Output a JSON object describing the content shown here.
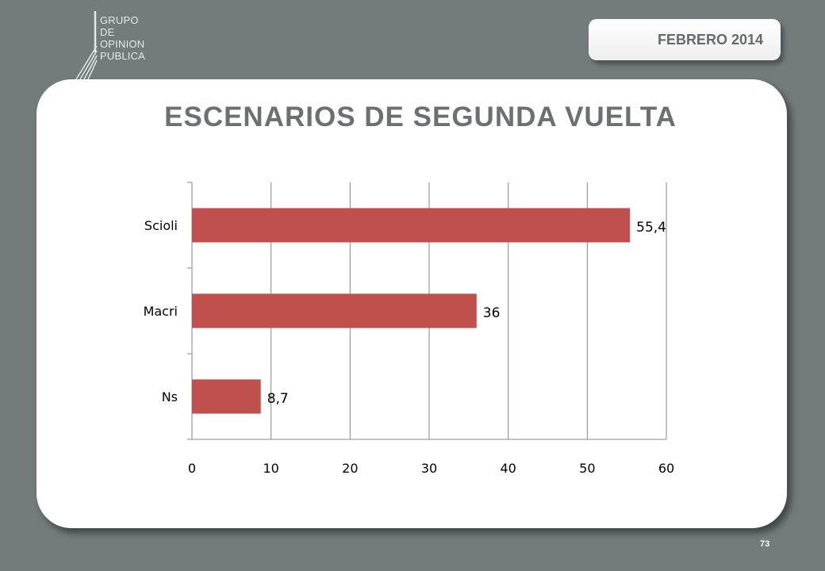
{
  "logo": {
    "lines": [
      "GRUPO",
      "DE",
      "OPINION",
      "PUBLICA"
    ]
  },
  "header": {
    "date": "FEBRERO 2014"
  },
  "page_number": "73",
  "colors": {
    "background": "#737b7b",
    "bar": "#c0504d",
    "card": "#ffffff",
    "title": "#6d6f71"
  },
  "chart_data": {
    "type": "bar",
    "orientation": "horizontal",
    "title": "ESCENARIOS DE SEGUNDA VUELTA",
    "categories": [
      "Scioli",
      "Macri",
      "Ns"
    ],
    "values": [
      55.4,
      36,
      8.7
    ],
    "value_labels": [
      "55,4",
      "36",
      "8,7"
    ],
    "xlim": [
      0,
      60
    ],
    "xticks": [
      0,
      10,
      20,
      30,
      40,
      50,
      60
    ],
    "grid": true,
    "legend": "none"
  }
}
